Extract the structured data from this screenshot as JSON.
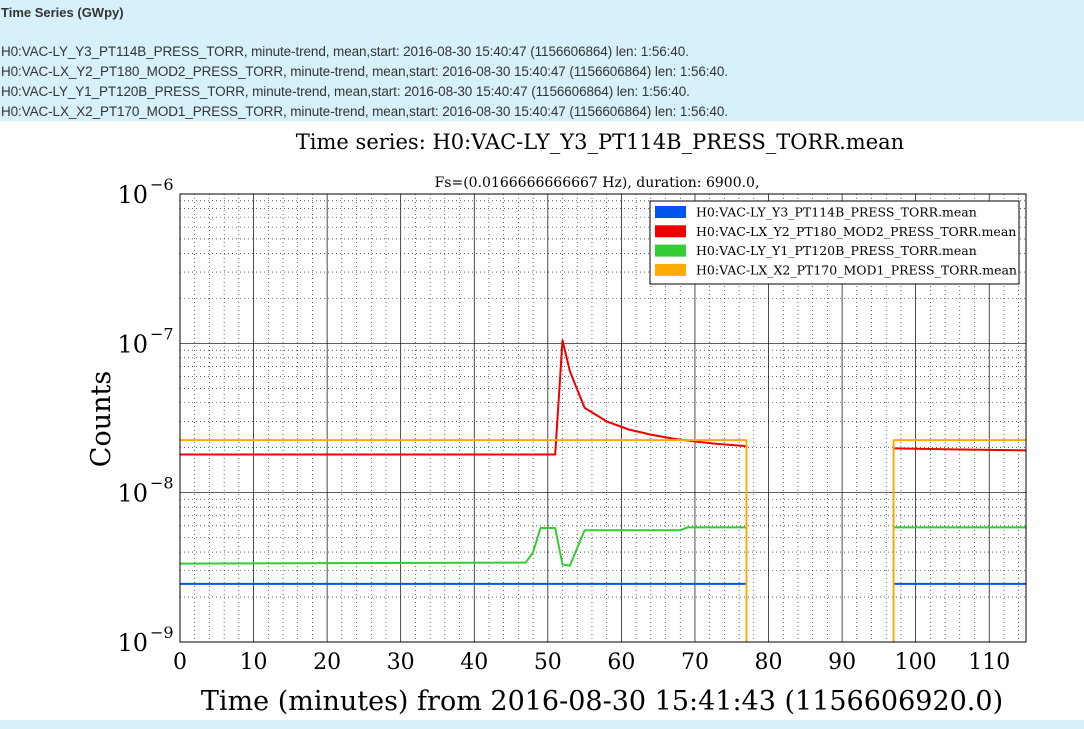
{
  "header": {
    "title": "Time Series (GWpy)",
    "lines": [
      "H0:VAC-LY_Y3_PT114B_PRESS_TORR, minute-trend, mean,start: 2016-08-30 15:40:47 (1156606864) len: 1:56:40.",
      "H0:VAC-LX_Y2_PT180_MOD2_PRESS_TORR, minute-trend, mean,start: 2016-08-30 15:40:47 (1156606864) len: 1:56:40.",
      "H0:VAC-LY_Y1_PT120B_PRESS_TORR, minute-trend, mean,start: 2016-08-30 15:40:47 (1156606864) len: 1:56:40.",
      "H0:VAC-LX_X2_PT170_MOD1_PRESS_TORR, minute-trend, mean,start: 2016-08-30 15:40:47 (1156606864) len: 1:56:40."
    ]
  },
  "chart_data": {
    "type": "line",
    "title": "Time series:  H0:VAC-LY_Y3_PT114B_PRESS_TORR.mean",
    "subtitle": "Fs=(0.0166666666667 Hz), duration:  6900.0,",
    "xlabel": "Time (minutes) from 2016-08-30 15:41:43 (1156606920.0)",
    "ylabel": "Counts",
    "xlim": [
      0,
      115
    ],
    "ylim": [
      1e-09,
      1e-06
    ],
    "yscale": "log",
    "grid": true,
    "legend_position": "top-right",
    "x_ticks": [
      0,
      10,
      20,
      30,
      40,
      50,
      60,
      70,
      80,
      90,
      100,
      110
    ],
    "y_ticks": [
      {
        "value": 1e-09,
        "mantissa": "10",
        "exp": "−9"
      },
      {
        "value": 1e-08,
        "mantissa": "10",
        "exp": "−8"
      },
      {
        "value": 1e-07,
        "mantissa": "10",
        "exp": "−7"
      },
      {
        "value": 1e-06,
        "mantissa": "10",
        "exp": "−6"
      }
    ],
    "series": [
      {
        "name": "H0:VAC-LY_Y3_PT114B_PRESS_TORR.mean",
        "color": "#0055ee",
        "segments": [
          [
            [
              0,
              2.45e-09
            ],
            [
              77,
              2.45e-09
            ]
          ],
          [
            [
              97,
              2.45e-09
            ],
            [
              115,
              2.45e-09
            ]
          ]
        ]
      },
      {
        "name": "H0:VAC-LX_Y2_PT180_MOD2_PRESS_TORR.mean",
        "color": "#ee0000",
        "segments": [
          [
            [
              0,
              1.8e-08
            ],
            [
              51,
              1.8e-08
            ],
            [
              52,
              1.05e-07
            ],
            [
              53,
              6.5e-08
            ],
            [
              55,
              3.7e-08
            ],
            [
              58,
              3e-08
            ],
            [
              61,
              2.65e-08
            ],
            [
              64,
              2.45e-08
            ],
            [
              67,
              2.3e-08
            ],
            [
              70,
              2.2e-08
            ],
            [
              73,
              2.12e-08
            ],
            [
              77,
              2.05e-08
            ]
          ],
          [
            [
              97,
              1.98e-08
            ],
            [
              105,
              1.95e-08
            ],
            [
              115,
              1.92e-08
            ]
          ]
        ]
      },
      {
        "name": "H0:VAC-LY_Y1_PT120B_PRESS_TORR.mean",
        "color": "#33cc33",
        "segments": [
          [
            [
              0,
              3.35e-09
            ],
            [
              47,
              3.4e-09
            ],
            [
              48,
              4e-09
            ],
            [
              49,
              5.8e-09
            ],
            [
              51,
              5.8e-09
            ],
            [
              52,
              3.3e-09
            ],
            [
              53,
              3.25e-09
            ],
            [
              55,
              5.6e-09
            ],
            [
              68,
              5.6e-09
            ],
            [
              69,
              5.85e-09
            ],
            [
              77,
              5.85e-09
            ]
          ],
          [
            [
              97,
              5.85e-09
            ],
            [
              115,
              5.85e-09
            ]
          ]
        ]
      },
      {
        "name": "H0:VAC-LX_X2_PT170_MOD1_PRESS_TORR.mean",
        "color": "#ffaa00",
        "segments": [
          [
            [
              0,
              2.25e-08
            ],
            [
              77,
              2.25e-08
            ],
            [
              77,
              1e-09
            ]
          ],
          [
            [
              97,
              1e-09
            ],
            [
              97,
              2.25e-08
            ],
            [
              115,
              2.25e-08
            ]
          ]
        ]
      }
    ]
  }
}
